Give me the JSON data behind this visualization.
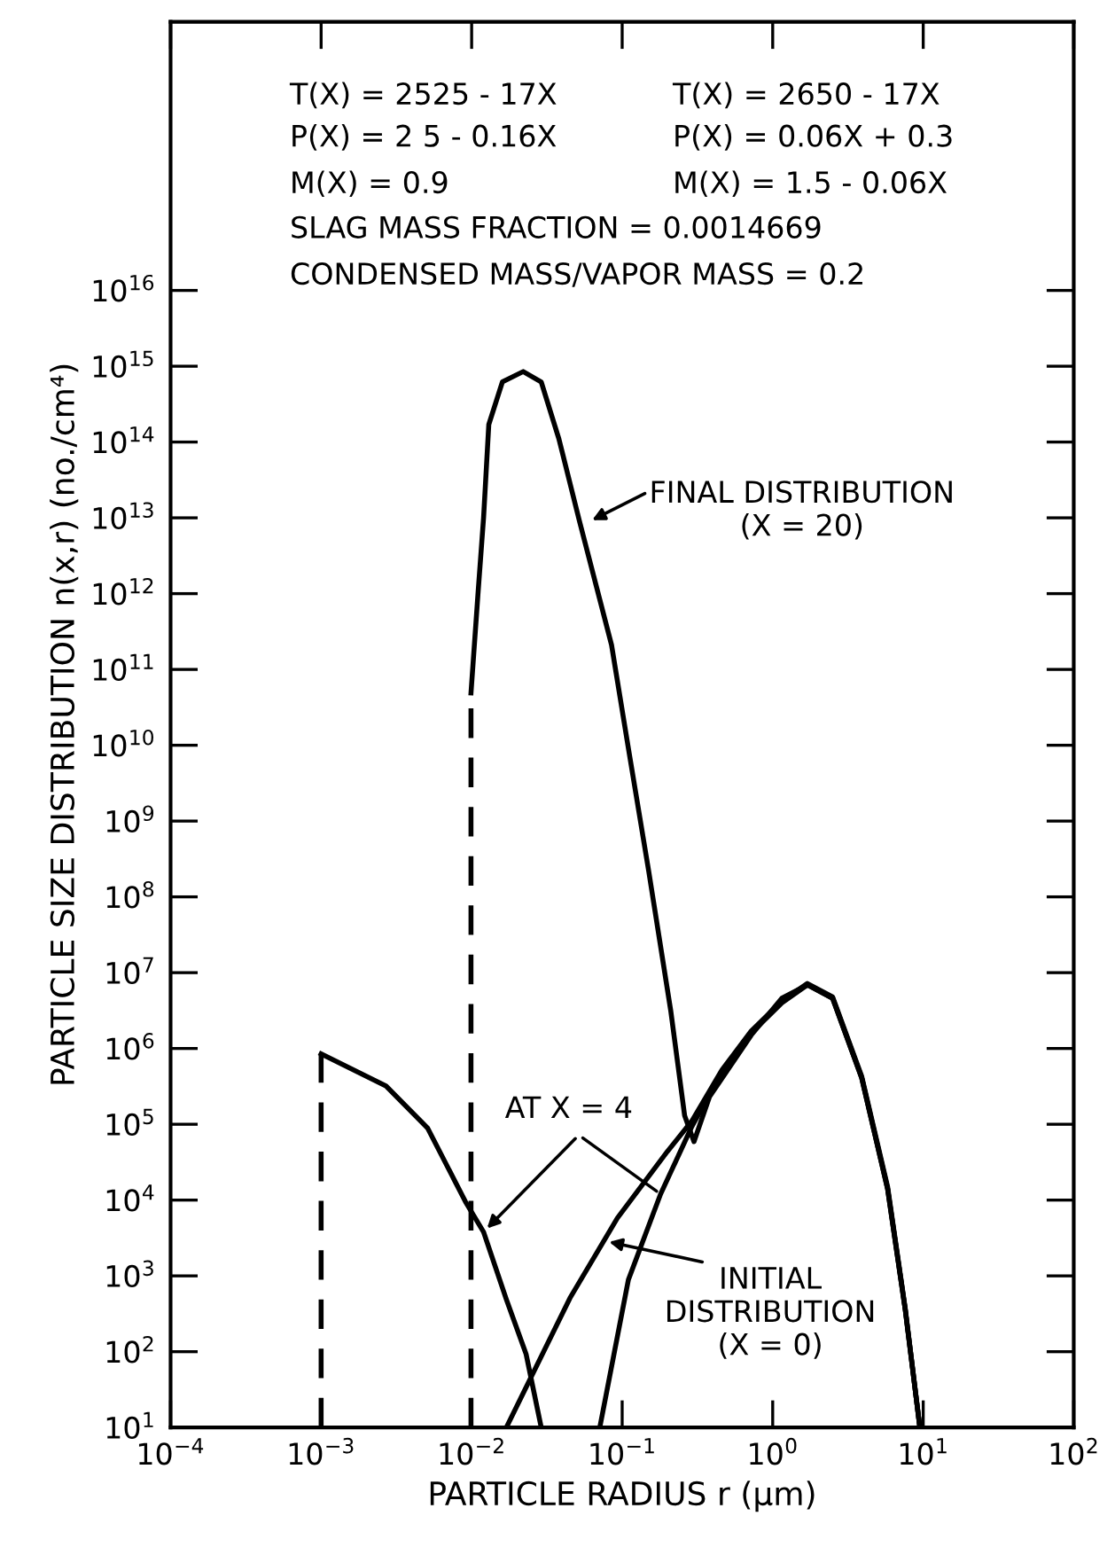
{
  "chart_data": {
    "type": "line",
    "xlabel": "PARTICLE RADIUS r (μm)",
    "ylabel": "PARTICLE SIZE DISTRIBUTION n(x,r) (no./cm⁴)",
    "log": "xy",
    "xlim": [
      0.0001,
      100
    ],
    "ylim": [
      10,
      3.5e+19
    ],
    "xticks": [
      {
        "value": 0.0001,
        "label": "10$^{−4}$"
      },
      {
        "value": 0.001,
        "label": "10$^{−3}$"
      },
      {
        "value": 0.01,
        "label": "10$^{−2}$"
      },
      {
        "value": 0.1,
        "label": "10$^{−1}$"
      },
      {
        "value": 1,
        "label": "10$^{0}$"
      },
      {
        "value": 10,
        "label": "10$^{1}$"
      },
      {
        "value": 100,
        "label": "10$^{2}$"
      }
    ],
    "yticks": [
      {
        "value": 10.0,
        "label": "10$^{1}$"
      },
      {
        "value": 100.0,
        "label": "10$^{2}$"
      },
      {
        "value": 1000.0,
        "label": "10$^{3}$"
      },
      {
        "value": 10000.0,
        "label": "10$^{4}$"
      },
      {
        "value": 100000.0,
        "label": "10$^{5}$"
      },
      {
        "value": 1000000.0,
        "label": "10$^{6}$"
      },
      {
        "value": 10000000.0,
        "label": "10$^{7}$"
      },
      {
        "value": 100000000.0,
        "label": "10$^{8}$"
      },
      {
        "value": 1000000000.0,
        "label": "10$^{9}$"
      },
      {
        "value": 10000000000.0,
        "label": "10$^{10}$"
      },
      {
        "value": 100000000000.0,
        "label": "10$^{11}$"
      },
      {
        "value": 1000000000000.0,
        "label": "10$^{12}$"
      },
      {
        "value": 10000000000000.0,
        "label": "10$^{13}$"
      },
      {
        "value": 100000000000000.0,
        "label": "10$^{14}$"
      },
      {
        "value": 1000000000000000.0,
        "label": "10$^{15}$"
      },
      {
        "value": 1e+16,
        "label": "10$^{16}$"
      }
    ],
    "series": [
      {
        "color": "#000000",
        "line_style": "solid",
        "x": [
          0.001,
          0.0027,
          0.0051,
          0.0091,
          0.012,
          0.017,
          0.023,
          0.029
        ],
        "values": [
          850000.0,
          320000.0,
          89000.0,
          9500.0,
          3800.0,
          490,
          93,
          10
        ]
      },
      {
        "color": "#000000",
        "line_style": "solid",
        "x": [
          0.0099,
          0.011,
          0.012,
          0.013,
          0.016,
          0.022,
          0.029,
          0.038,
          0.052,
          0.085,
          0.11,
          0.15,
          0.21,
          0.26,
          0.3,
          0.38,
          0.72,
          1.15,
          1.7,
          2.5,
          3.9,
          5.8,
          7.6,
          9.5
        ],
        "values": [
          49000000000.0,
          950000000000.0,
          10000000000000.0,
          170000000000000.0,
          620000000000000.0,
          850000000000000.0,
          620000000000000.0,
          110000000000000.0,
          9100000000000.0,
          210000000000.0,
          9100000000.0,
          220000000.0,
          3200000.0,
          130000.0,
          59000.0,
          230000.0,
          1500000.0,
          4600000.0,
          6900000.0,
          4600000.0,
          410000.0,
          14000.0,
          355,
          10
        ]
      },
      {
        "color": "#000000",
        "line_style": "solid",
        "x": [
          0.071,
          0.11,
          0.18,
          0.29,
          0.46,
          0.72,
          1.15,
          1.7,
          2.5,
          3.9,
          5.8,
          7.6,
          9.5
        ],
        "values": [
          10,
          890,
          12000.0,
          93000.0,
          490000.0,
          1600000.0,
          4000000.0,
          6900000.0,
          4600000.0,
          410000.0,
          14000.0,
          355,
          10
        ]
      },
      {
        "color": "#000000",
        "line_style": "solid",
        "x": [
          0.017,
          0.045,
          0.093,
          0.2,
          0.29,
          0.46,
          0.72,
          1.15,
          1.7,
          2.5,
          3.9,
          5.8,
          7.6,
          9.5
        ],
        "values": [
          10,
          510,
          5800.0,
          44000.0,
          110000.0,
          520000.0,
          1700000.0,
          4200000.0,
          7200000.0,
          4800000.0,
          430000.0,
          15000.0,
          370,
          10
        ]
      }
    ],
    "ref_lines": [
      {
        "axis": "x",
        "value": 0.001,
        "color": "#000000",
        "line_style": "dashed"
      },
      {
        "axis": "x",
        "value": 0.0099,
        "color": "#000000",
        "line_style": "dashed"
      }
    ],
    "annotations": [
      "T(X) = 2525 - 17X",
      "T(X) = 2650 - 17X",
      "P(X) = 2 5 - 0.16X",
      "P(X) = 0.06X + 0.3",
      "M(X) = 0.9",
      "M(X) = 1.5 - 0.06X",
      "SLAG MASS FRACTION = 0.0014669",
      "CONDENSED MASS/VAPOR MASS = 0.2",
      {
        "text": "FINAL DISTRIBUTION\n(X = 20)",
        "x": 0.059,
        "y": 8700000000000.0
      },
      {
        "text": "AT X = 4",
        "x": 0.012,
        "y": 3800.0
      },
      {
        "text": "INITIAL\nDISTRIBUTION\n(X = 0)",
        "x": 0.076,
        "y": 2900.0
      }
    ]
  }
}
